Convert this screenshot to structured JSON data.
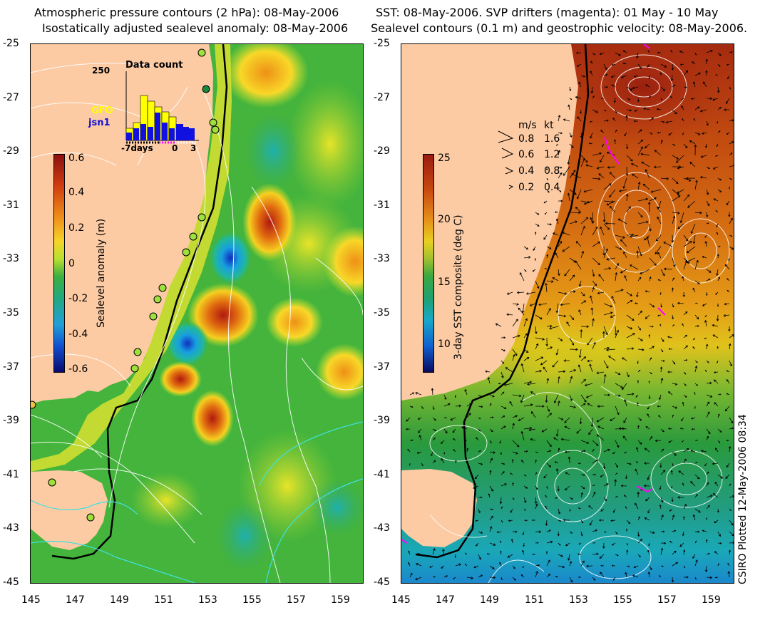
{
  "left": {
    "title_line1": "Atmospheric pressure contours (2 hPa): 08-May-2006",
    "title_line2": "Isostatically adjusted sealevel anomaly: 08-May-2006",
    "colorbar_label": "Sealevel anomaly (m)",
    "colorbar_ticks": [
      "0.6",
      "0.4",
      "0.2",
      "0",
      "-0.2",
      "-0.4",
      "-0.6"
    ],
    "inset": {
      "title": "Data count",
      "ymax": "250",
      "legend": [
        "GFO",
        "jsn1"
      ],
      "xticks": [
        "-7days",
        "0",
        "3"
      ]
    }
  },
  "right": {
    "title_line1": "SST: 08-May-2006. SVP drifters (magenta): 01 May - 10 May",
    "title_line2": "Sealevel contours (0.1 m) and geostrophic velocity: 08-May-2006.",
    "colorbar_label": "3-day SST composite (deg C)",
    "colorbar_ticks": [
      "25",
      "20",
      "15",
      "10"
    ],
    "speed_legend": {
      "header_ms": "m/s",
      "header_kt": "kt",
      "rows": [
        [
          "0.8",
          "1.6"
        ],
        [
          "0.6",
          "1.2"
        ],
        [
          "0.4",
          "0.8"
        ],
        [
          "0.2",
          "0.4"
        ]
      ]
    }
  },
  "y_ticks": [
    "-25",
    "-27",
    "-29",
    "-31",
    "-33",
    "-35",
    "-37",
    "-39",
    "-41",
    "-43",
    "-45"
  ],
  "x_ticks": [
    "145",
    "147",
    "149",
    "151",
    "153",
    "155",
    "157",
    "159"
  ],
  "credit": "CSIRO Plotted 12-May-2006 08:34",
  "colors": {
    "land": "#fccba4",
    "ocean_green": "#46b83c",
    "sst_warm": "#d06018",
    "sst_cool": "#2aa060"
  }
}
